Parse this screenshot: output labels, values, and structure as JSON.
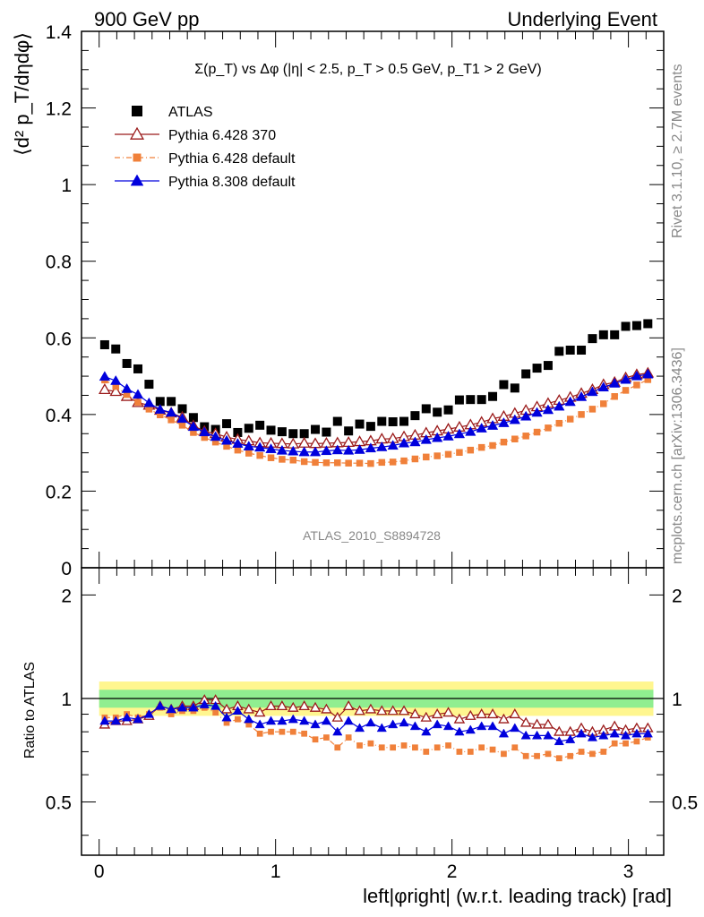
{
  "header": {
    "left": "900 GeV pp",
    "right": "Underlying Event"
  },
  "side_labels": {
    "rivet": "Rivet 3.1.10, ≥ 2.7M events",
    "mcplots": "mcplots.cern.ch [arXiv:1306.3436]"
  },
  "analysis_id": "ATLAS_2010_S8894728",
  "chart_data": [
    {
      "type": "scatter",
      "panel": "main",
      "title": "Σ(p_T) vs Δφ (|η| < 2.5, p_T > 0.5 GeV, p_T1 > 2 GeV)",
      "ylabel": "⟨d² p_T/dηdφ⟩",
      "xlabel": "",
      "xlim": [
        -0.1,
        3.2
      ],
      "ylim": [
        0,
        1.4
      ],
      "yticks": [
        "0",
        "0.2",
        "0.4",
        "0.6",
        "0.8",
        "1",
        "1.2",
        "1.4"
      ],
      "legend_position": "top-left",
      "x": [
        0.0314,
        0.0942,
        0.157,
        0.2199,
        0.2827,
        0.3456,
        0.4084,
        0.4712,
        0.5341,
        0.5969,
        0.6597,
        0.7226,
        0.7854,
        0.8482,
        0.9111,
        0.9739,
        1.0367,
        1.0996,
        1.1624,
        1.2252,
        1.2881,
        1.3509,
        1.4137,
        1.4765,
        1.5394,
        1.6022,
        1.665,
        1.7279,
        1.7907,
        1.8535,
        1.9164,
        1.9792,
        2.042,
        2.1049,
        2.1677,
        2.2305,
        2.2934,
        2.3562,
        2.419,
        2.4819,
        2.5447,
        2.6075,
        2.6704,
        2.7332,
        2.796,
        2.8588,
        2.9217,
        2.9845,
        3.0473,
        3.1102
      ],
      "series": [
        {
          "name": "ATLAS",
          "color": "#000000",
          "marker": "square",
          "values": [
            0.582,
            0.571,
            0.533,
            0.519,
            0.479,
            0.434,
            0.434,
            0.415,
            0.392,
            0.368,
            0.361,
            0.376,
            0.353,
            0.364,
            0.372,
            0.359,
            0.355,
            0.35,
            0.35,
            0.361,
            0.354,
            0.382,
            0.357,
            0.375,
            0.369,
            0.382,
            0.381,
            0.382,
            0.397,
            0.415,
            0.406,
            0.412,
            0.438,
            0.439,
            0.439,
            0.447,
            0.478,
            0.469,
            0.506,
            0.521,
            0.528,
            0.565,
            0.568,
            0.568,
            0.598,
            0.608,
            0.608,
            0.63,
            0.632,
            0.637
          ]
        },
        {
          "name": "Pythia 6.428 370",
          "color": "#9b1b1b",
          "marker": "open-triangle",
          "values": [
            0.465,
            0.46,
            0.447,
            0.431,
            0.424,
            0.411,
            0.404,
            0.393,
            0.371,
            0.356,
            0.35,
            0.341,
            0.335,
            0.331,
            0.326,
            0.325,
            0.324,
            0.323,
            0.325,
            0.324,
            0.325,
            0.326,
            0.327,
            0.329,
            0.331,
            0.336,
            0.337,
            0.342,
            0.346,
            0.352,
            0.357,
            0.362,
            0.367,
            0.373,
            0.38,
            0.389,
            0.395,
            0.403,
            0.411,
            0.42,
            0.429,
            0.437,
            0.445,
            0.455,
            0.465,
            0.478,
            0.484,
            0.496,
            0.504,
            0.508
          ]
        },
        {
          "name": "Pythia 6.428 default",
          "color": "#f0803a",
          "marker": "small-square",
          "values": [
            0.49,
            0.473,
            0.452,
            0.432,
            0.414,
            0.399,
            0.386,
            0.372,
            0.353,
            0.34,
            0.328,
            0.317,
            0.307,
            0.299,
            0.293,
            0.287,
            0.283,
            0.281,
            0.277,
            0.275,
            0.274,
            0.274,
            0.273,
            0.273,
            0.272,
            0.275,
            0.276,
            0.279,
            0.284,
            0.289,
            0.292,
            0.296,
            0.301,
            0.307,
            0.314,
            0.319,
            0.328,
            0.336,
            0.344,
            0.354,
            0.365,
            0.377,
            0.388,
            0.4,
            0.414,
            0.428,
            0.447,
            0.463,
            0.477,
            0.491
          ]
        },
        {
          "name": "Pythia 8.308 default",
          "color": "#0000dd",
          "marker": "triangle",
          "values": [
            0.499,
            0.488,
            0.467,
            0.452,
            0.43,
            0.413,
            0.405,
            0.389,
            0.368,
            0.354,
            0.342,
            0.332,
            0.324,
            0.317,
            0.314,
            0.31,
            0.306,
            0.304,
            0.302,
            0.302,
            0.305,
            0.307,
            0.306,
            0.308,
            0.312,
            0.315,
            0.319,
            0.325,
            0.328,
            0.334,
            0.339,
            0.343,
            0.349,
            0.355,
            0.364,
            0.371,
            0.378,
            0.386,
            0.395,
            0.405,
            0.412,
            0.421,
            0.433,
            0.446,
            0.459,
            0.471,
            0.481,
            0.491,
            0.5,
            0.505
          ]
        }
      ]
    },
    {
      "type": "scatter",
      "panel": "ratio",
      "ylabel": "Ratio to ATLAS",
      "xlabel": "left|φright| (w.r.t. leading track) [rad]",
      "xlim": [
        -0.1,
        3.2
      ],
      "ylim": [
        0.35,
        2.4
      ],
      "yscale": "log",
      "yticks": [
        "0.5",
        "1",
        "2"
      ],
      "xticks": [
        "0",
        "1",
        "2",
        "3"
      ],
      "bands": {
        "inner": [
          0.94,
          1.06
        ],
        "outer": [
          0.89,
          1.12
        ],
        "inner_color": "#90ee90",
        "outer_color": "#fff68f"
      },
      "x": [
        0.0314,
        0.0942,
        0.157,
        0.2199,
        0.2827,
        0.3456,
        0.4084,
        0.4712,
        0.5341,
        0.5969,
        0.6597,
        0.7226,
        0.7854,
        0.8482,
        0.9111,
        0.9739,
        1.0367,
        1.0996,
        1.1624,
        1.2252,
        1.2881,
        1.3509,
        1.4137,
        1.4765,
        1.5394,
        1.6022,
        1.665,
        1.7279,
        1.7907,
        1.8535,
        1.9164,
        1.9792,
        2.042,
        2.1049,
        2.1677,
        2.2305,
        2.2934,
        2.3562,
        2.419,
        2.4819,
        2.5447,
        2.6075,
        2.6704,
        2.7332,
        2.796,
        2.8588,
        2.9217,
        2.9845,
        3.0473,
        3.1102
      ],
      "series": [
        {
          "name": "Pythia 6.428 370",
          "color": "#9b1b1b",
          "marker": "open-triangle",
          "values": [
            0.84,
            0.86,
            0.86,
            0.87,
            0.89,
            0.95,
            0.93,
            0.95,
            0.95,
            0.99,
            0.99,
            0.93,
            0.95,
            0.93,
            0.91,
            0.95,
            0.95,
            0.94,
            0.95,
            0.94,
            0.93,
            0.88,
            0.95,
            0.92,
            0.93,
            0.92,
            0.92,
            0.92,
            0.9,
            0.88,
            0.9,
            0.91,
            0.87,
            0.89,
            0.9,
            0.9,
            0.87,
            0.9,
            0.85,
            0.84,
            0.84,
            0.8,
            0.8,
            0.82,
            0.8,
            0.81,
            0.83,
            0.81,
            0.82,
            0.82
          ]
        },
        {
          "name": "Pythia 6.428 default",
          "color": "#f0803a",
          "marker": "small-square",
          "values": [
            0.88,
            0.88,
            0.9,
            0.88,
            0.9,
            0.94,
            0.9,
            0.92,
            0.92,
            0.94,
            0.91,
            0.85,
            0.87,
            0.84,
            0.79,
            0.8,
            0.8,
            0.8,
            0.79,
            0.76,
            0.77,
            0.72,
            0.77,
            0.73,
            0.74,
            0.72,
            0.72,
            0.73,
            0.72,
            0.7,
            0.72,
            0.73,
            0.7,
            0.7,
            0.72,
            0.71,
            0.69,
            0.72,
            0.68,
            0.68,
            0.69,
            0.67,
            0.68,
            0.7,
            0.69,
            0.7,
            0.74,
            0.74,
            0.75,
            0.77
          ]
        },
        {
          "name": "Pythia 8.308 default",
          "color": "#0000dd",
          "marker": "triangle",
          "values": [
            0.86,
            0.86,
            0.88,
            0.87,
            0.9,
            0.95,
            0.93,
            0.94,
            0.94,
            0.96,
            0.95,
            0.88,
            0.92,
            0.87,
            0.84,
            0.86,
            0.86,
            0.87,
            0.86,
            0.84,
            0.86,
            0.8,
            0.86,
            0.82,
            0.85,
            0.82,
            0.84,
            0.85,
            0.83,
            0.8,
            0.84,
            0.83,
            0.8,
            0.81,
            0.83,
            0.83,
            0.79,
            0.82,
            0.78,
            0.78,
            0.78,
            0.75,
            0.76,
            0.79,
            0.77,
            0.78,
            0.79,
            0.78,
            0.79,
            0.79
          ]
        }
      ]
    }
  ]
}
